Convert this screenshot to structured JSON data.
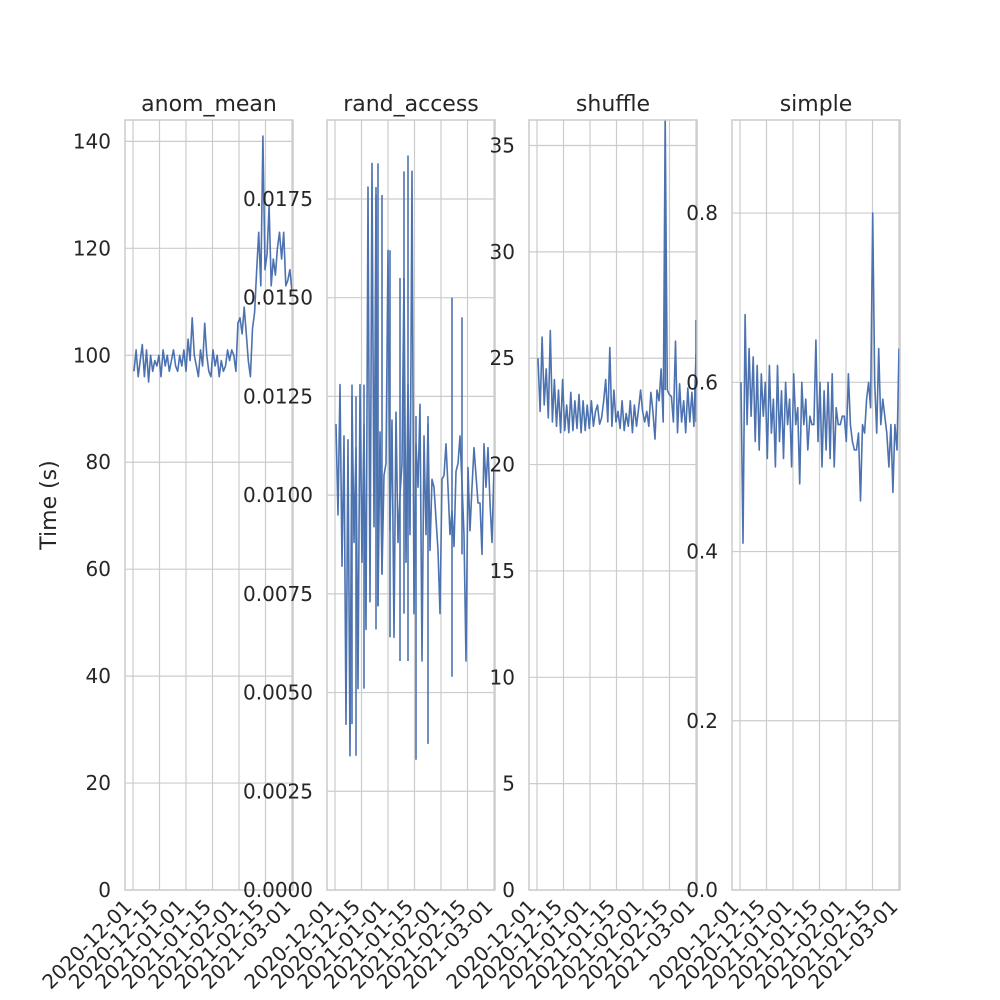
{
  "chart_data": {
    "type": "line",
    "ylabel": "Time (s)",
    "x_ticks": [
      "2020-12-01",
      "2020-12-15",
      "2021-01-01",
      "2021-01-15",
      "2021-02-01",
      "2021-02-15",
      "2021-03-01"
    ],
    "line_color": "#4c72b0",
    "grid_color": "#cccccc",
    "panels": [
      {
        "title": "anom_mean",
        "ylim": [
          0,
          144
        ],
        "y_ticks": [
          "0",
          "20",
          "40",
          "60",
          "80",
          "100",
          "120",
          "140"
        ],
        "y_tick_values": [
          0,
          20,
          40,
          60,
          80,
          100,
          120,
          140
        ],
        "values": [
          97,
          101,
          96,
          99,
          102,
          96,
          101,
          95,
          100,
          97,
          99,
          98,
          100,
          96,
          101,
          98,
          100,
          97,
          99,
          101,
          98,
          97,
          100,
          98,
          101,
          97,
          103,
          99,
          107,
          100,
          98,
          96,
          101,
          98,
          106,
          100,
          97,
          96,
          101,
          98,
          100,
          96,
          99,
          97,
          98,
          101,
          99,
          101,
          100,
          97,
          106,
          107,
          104,
          109,
          104,
          99,
          96,
          105,
          108,
          116,
          123,
          113,
          141,
          116,
          119,
          128,
          113,
          118,
          115,
          120,
          123,
          118,
          123,
          113,
          114,
          116,
          112
        ]
      },
      {
        "title": "rand_access",
        "ylim": [
          0,
          0.0195
        ],
        "y_ticks": [
          "0.0000",
          "0.0025",
          "0.0050",
          "0.0075",
          "0.0100",
          "0.0125",
          "0.0150",
          "0.0175"
        ],
        "y_tick_values": [
          0,
          0.0025,
          0.005,
          0.0075,
          0.01,
          0.0125,
          0.015,
          0.0175
        ],
        "values": [
          0.0118,
          0.0095,
          0.0128,
          0.0082,
          0.0115,
          0.0042,
          0.0114,
          0.0034,
          0.0125,
          0.0088,
          0.0112,
          0.0051,
          0.0128,
          0.0083,
          0.0118,
          0.0066,
          0.0178,
          0.0073,
          0.0184,
          0.0092,
          0.0176,
          0.0072,
          0.0116,
          0.008,
          0.0105,
          0.0108,
          0.0162,
          0.0091,
          0.0119,
          0.0064,
          0.0121,
          0.0088,
          0.01,
          0.0108,
          0.0155,
          0.0083,
          0.0128,
          0.009,
          0.0182,
          0.007,
          0.0113,
          0.0102,
          0.0123,
          0.0058,
          0.0115,
          0.009,
          0.0118,
          0.0086,
          0.0104,
          0.0102,
          0.0094,
          0.0086,
          0.007,
          0.0104,
          0.0105,
          0.0113,
          0.0102,
          0.009,
          0.0096,
          0.0087,
          0.0106,
          0.0108,
          0.0115,
          0.0103,
          0.009,
          0.0058,
          0.0107,
          0.0091,
          0.0102,
          0.0112,
          0.0105,
          0.0098,
          0.0098,
          0.0085,
          0.0113,
          0.0102,
          0.0112,
          0.0098,
          0.0088,
          0.0107
        ],
        "spikes": [
          {
            "i": 8,
            "top": 0.0128,
            "bottom": 0.0042
          },
          {
            "i": 10,
            "top": 0.0125,
            "bottom": 0.0034
          },
          {
            "i": 14,
            "top": 0.0128,
            "bottom": 0.0051
          },
          {
            "i": 20,
            "top": 0.0178,
            "bottom": 0.0066
          },
          {
            "i": 21,
            "top": 0.0184,
            "bottom": 0.0072
          },
          {
            "i": 23,
            "top": 0.0176,
            "bottom": 0.008
          },
          {
            "i": 27,
            "top": 0.0162,
            "bottom": 0.0064
          },
          {
            "i": 32,
            "top": 0.0155,
            "bottom": 0.0058
          },
          {
            "i": 34,
            "top": 0.0182,
            "bottom": 0.007
          },
          {
            "i": 36,
            "top": 0.0186,
            "bottom": 0.0058
          },
          {
            "i": 40,
            "top": 0.012,
            "bottom": 0.0033
          },
          {
            "i": 46,
            "top": 0.012,
            "bottom": 0.0037
          },
          {
            "i": 58,
            "top": 0.015,
            "bottom": 0.0054
          },
          {
            "i": 63,
            "top": 0.0145,
            "bottom": 0.0085
          }
        ]
      },
      {
        "title": "shuffle",
        "ylim": [
          0,
          36.2
        ],
        "y_ticks": [
          "0",
          "5",
          "10",
          "15",
          "20",
          "25",
          "30",
          "35"
        ],
        "y_tick_values": [
          0,
          5,
          10,
          15,
          20,
          25,
          30,
          35
        ],
        "values": [
          25,
          22.5,
          26,
          22.8,
          24.5,
          22.2,
          26.3,
          22.0,
          24.0,
          21.8,
          23.5,
          21.5,
          24.0,
          21.6,
          22.8,
          21.5,
          23.4,
          21.6,
          23.0,
          21.7,
          23.3,
          21.5,
          23.0,
          21.6,
          22.8,
          21.7,
          23.0,
          21.8,
          22.5,
          22.8,
          21.9,
          22.2,
          23.0,
          24.0,
          22.0,
          25.5,
          21.8,
          23.5,
          22.0,
          22.5,
          21.7,
          23.0,
          21.6,
          22.4,
          21.8,
          23.0,
          21.5,
          22.8,
          21.8,
          22.6,
          23.5,
          22.5,
          22.0,
          22.5,
          21.8,
          23.4,
          22.5,
          21.2,
          23.5,
          23.0,
          24.5,
          22.0,
          36.2,
          23.5,
          23.3,
          23.2,
          22.0,
          25.8,
          21.5,
          23.8,
          22.0,
          23.0,
          21.5,
          23.6,
          22.0,
          23.4,
          21.8,
          25.2
        ],
        "spikes": [
          {
            "i": 62,
            "top": 36.2,
            "bottom": 23.5
          },
          {
            "i": 77,
            "top": 26.8,
            "bottom": 22.0
          }
        ]
      },
      {
        "title": "simple",
        "ylim": [
          0,
          0.91
        ],
        "y_ticks": [
          "0.0",
          "0.2",
          "0.4",
          "0.6",
          "0.8"
        ],
        "y_tick_values": [
          0,
          0.2,
          0.4,
          0.6,
          0.8
        ],
        "values": [
          0.6,
          0.41,
          0.68,
          0.55,
          0.64,
          0.56,
          0.63,
          0.53,
          0.62,
          0.52,
          0.61,
          0.56,
          0.6,
          0.51,
          0.62,
          0.54,
          0.58,
          0.5,
          0.62,
          0.53,
          0.59,
          0.51,
          0.6,
          0.55,
          0.58,
          0.5,
          0.61,
          0.55,
          0.57,
          0.48,
          0.6,
          0.55,
          0.58,
          0.52,
          0.56,
          0.55,
          0.55,
          0.65,
          0.53,
          0.6,
          0.5,
          0.59,
          0.52,
          0.6,
          0.51,
          0.61,
          0.5,
          0.57,
          0.55,
          0.55,
          0.56,
          0.56,
          0.53,
          0.61,
          0.55,
          0.53,
          0.52,
          0.52,
          0.54,
          0.46,
          0.55,
          0.54,
          0.58,
          0.6,
          0.57,
          0.8,
          0.6,
          0.54,
          0.64,
          0.55,
          0.58,
          0.56,
          0.54,
          0.5,
          0.55,
          0.47,
          0.55,
          0.52,
          0.64
        ]
      }
    ]
  }
}
